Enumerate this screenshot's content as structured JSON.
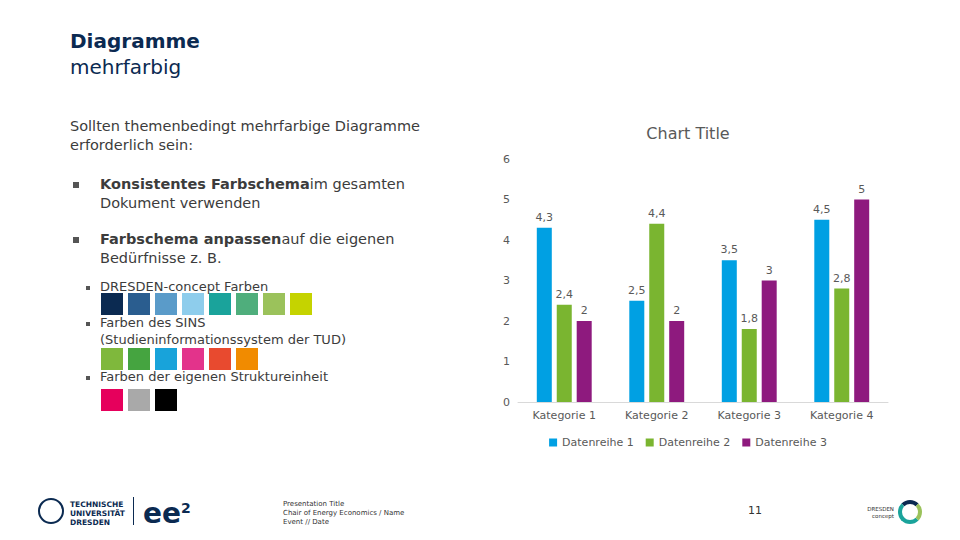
{
  "header": {
    "title": "Diagramme",
    "subtitle": "mehrfarbig"
  },
  "body": {
    "intro": "Sollten themenbedingt mehrfarbige Diagramme erforderlich sein:",
    "bullets": [
      {
        "bold": "Konsistentes Farbschema",
        "text": "im gesamten Dokument verwenden"
      },
      {
        "bold": "Farbschema anpassen",
        "text": "auf die eigenen Bedürfnisse z. B."
      }
    ],
    "sub_bullets": [
      {
        "text": "DRESDEN-concept Farben",
        "colors": [
          "#0b2a51",
          "#2a5d8f",
          "#5a9bc9",
          "#8ecdec",
          "#1aa39b",
          "#4fae7c",
          "#9bc25b",
          "#c5d300"
        ]
      },
      {
        "text": "Farben des SINS (Studieninformationssystem der TUD)",
        "colors": [
          "#7fb83c",
          "#45a440",
          "#18a3da",
          "#e3338b",
          "#e84a2f",
          "#f18b00"
        ]
      },
      {
        "text": "Farben der eigenen Struktureinheit",
        "colors": [
          "#e6005c",
          "#a9a9a9",
          "#000000"
        ]
      }
    ]
  },
  "footer": {
    "logo": [
      "TECHNISCHE",
      "UNIVERSITÄT",
      "DRESDEN"
    ],
    "brand": "ee",
    "brand_sup": "2",
    "lines": [
      "Presentation Title",
      "Chair of Energy Economics / Name",
      "Event // Date"
    ],
    "page": 11,
    "concept": [
      "DRESDEN",
      "concept"
    ]
  },
  "chart_data": {
    "type": "bar",
    "title": "Chart Title",
    "categories": [
      "Kategorie 1",
      "Kategorie 2",
      "Kategorie 3",
      "Kategorie 4"
    ],
    "series": [
      {
        "name": "Datenreihe 1",
        "color": "#00a0e3",
        "values": [
          4.3,
          2.5,
          3.5,
          4.5
        ],
        "value_labels": [
          "4,3",
          "2,5",
          "3,5",
          "4,5"
        ]
      },
      {
        "name": "Datenreihe 2",
        "color": "#7ab530",
        "values": [
          2.4,
          4.4,
          1.8,
          2.8
        ],
        "value_labels": [
          "2,4",
          "4,4",
          "1,8",
          "2,8"
        ]
      },
      {
        "name": "Datenreihe 3",
        "color": "#8e1a7e",
        "values": [
          2,
          2,
          3,
          5
        ],
        "value_labels": [
          "2",
          "2",
          "3",
          "5"
        ]
      }
    ],
    "ylim": [
      0,
      6
    ],
    "yticks": [
      0,
      1,
      2,
      3,
      4,
      5,
      6
    ],
    "grid": false,
    "legend": "bottom",
    "data_labels": true
  }
}
